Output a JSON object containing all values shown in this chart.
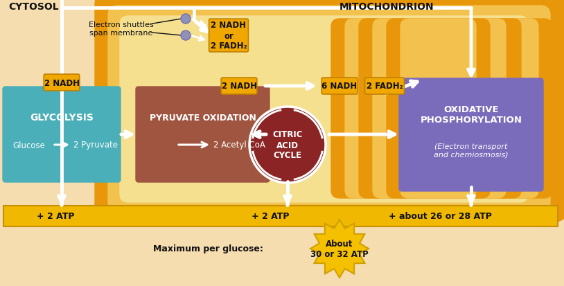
{
  "bg_color": "#F5DDB0",
  "mito_outer": "#E8960A",
  "mito_mid": "#F2C14E",
  "mito_inner_light": "#F5E090",
  "cristae_orange": "#E8960A",
  "cytosol_label": "CYTOSOL",
  "mitochondrion_label": "MITOCHONDRION",
  "glycolysis_color": "#4AAFB8",
  "glycolysis_title": "GLYCOLYSIS",
  "glycolysis_sub": "Glucose",
  "glycolysis_sub2": "2 Pyruvate",
  "pyruvate_color": "#A05540",
  "pyruvate_title": "PYRUVATE OXIDATION",
  "pyruvate_sub": "2 Acetyl CoA",
  "citric_color": "#8B2525",
  "citric_title": "CITRIC\nACID\nCYCLE",
  "oxidative_color": "#7B6BBB",
  "oxidative_title": "OXIDATIVE\nPHOSPHORYLATION",
  "oxidative_sub": "(Electron transport\nand chemiosmosis)",
  "atp_bar_color": "#F0B800",
  "atp_bar_edge": "#C89000",
  "atp1": "+ 2 ATP",
  "atp2": "+ 2 ATP",
  "atp3": "+ about 26 or 28 ATP",
  "nadh_color": "#F0A800",
  "nadh_edge": "#C08000",
  "white": "#FFFFFF",
  "dark": "#111111",
  "shuttle_color": "#9090BB",
  "starburst_color": "#F5C000",
  "starburst_edge": "#D0A000",
  "starburst_text": "About\n30 or 32 ATP",
  "max_label": "Maximum per glucose:",
  "electron_label": "Electron shuttles\nspan membrane"
}
